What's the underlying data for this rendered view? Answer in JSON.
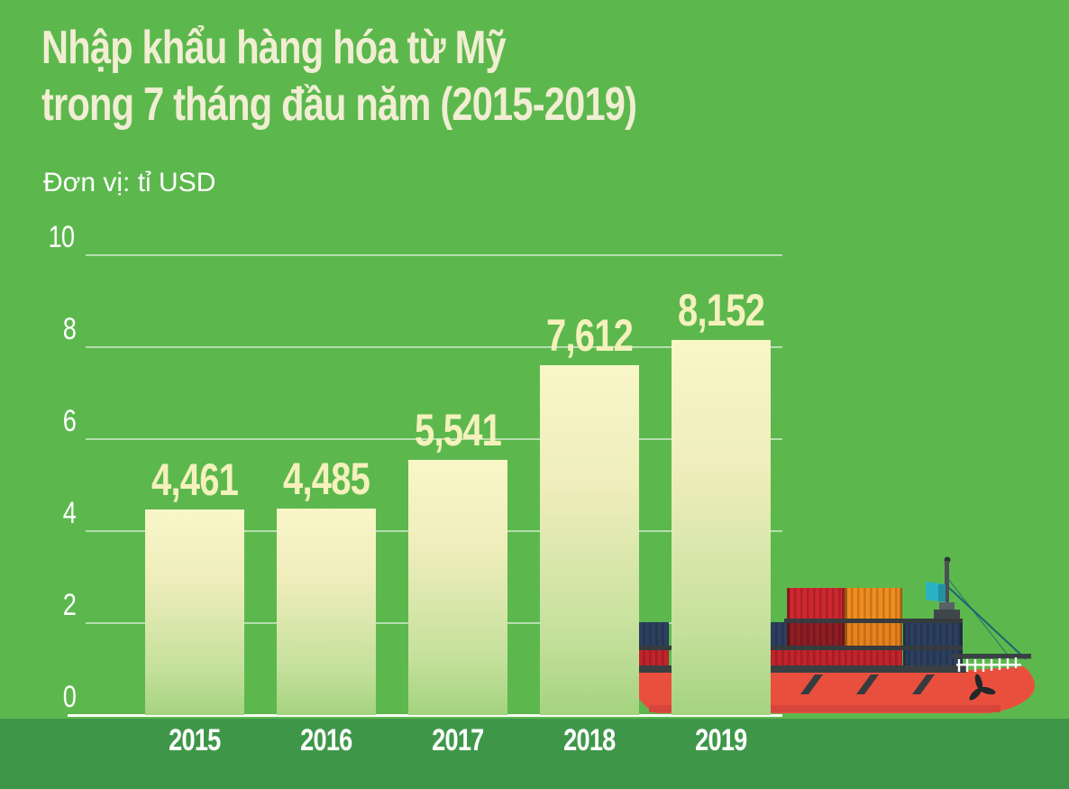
{
  "title": {
    "line1": "Nhập khẩu hàng hóa từ Mỹ",
    "line2": "trong 7 tháng đầu năm (2015-2019)"
  },
  "subtitle": "Đơn vị: tỉ USD",
  "chart_data": {
    "type": "bar",
    "title": "Nhập khẩu hàng hóa từ Mỹ trong 7 tháng đầu năm (2015-2019)",
    "unit_label": "Đơn vị: tỉ USD",
    "categories": [
      "2015",
      "2016",
      "2017",
      "2018",
      "2019"
    ],
    "values": [
      4.461,
      4.485,
      5.541,
      7.612,
      8.152
    ],
    "value_labels": [
      "4,461",
      "4,485",
      "5,541",
      "7,612",
      "8,152"
    ],
    "xlabel": "",
    "ylabel": "tỉ USD",
    "ylim": [
      0,
      10
    ],
    "yticks": [
      0,
      2,
      4,
      6,
      8,
      10
    ],
    "grid": true,
    "legend": "none",
    "bar_gradient_top": "#f9f6c8",
    "bar_gradient_bottom": "#a5d37f"
  },
  "colors": {
    "background": "#5cb84d",
    "bottom_strip": "#3e9749",
    "title_text": "#f1eed3",
    "subtitle_text": "#ffffff",
    "tick_text": "#ffffff",
    "value_label_text": "#f5f1bc",
    "year_label_text": "#ffffff",
    "gridline": "rgba(255,255,255,0.55)",
    "axis_line": "#ffffff"
  },
  "illustration": {
    "name": "container-ship",
    "hull_color": "#e94f3d",
    "container_colors": [
      "#cf2731",
      "#8e1d24",
      "#c2242c",
      "#ef8d1f",
      "#e8821d",
      "#2c3f5f"
    ],
    "flag_color": "#2ab3c5"
  }
}
